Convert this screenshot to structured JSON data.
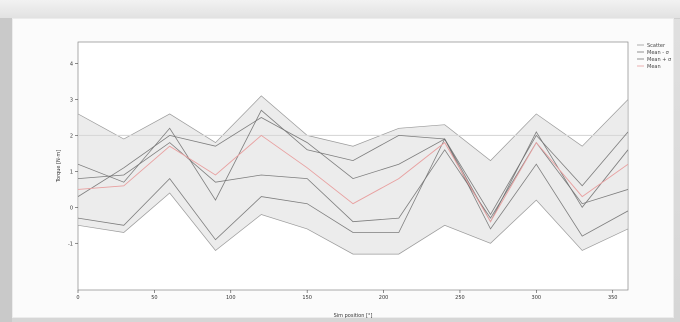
{
  "chart_data": {
    "type": "line",
    "xlabel": "Sim position [°]",
    "ylabel": "Torque [N·m]",
    "xlim": [
      0,
      360
    ],
    "ylim": [
      -2.3,
      4.6
    ],
    "x_ticks": [
      0,
      50,
      100,
      150,
      200,
      250,
      300,
      350
    ],
    "y_ticks": [
      -1,
      0,
      1,
      2,
      3,
      4
    ],
    "legend_position": "top-right outside",
    "grid": false,
    "legend": [
      "Scatter",
      "Mean - σ",
      "Mean + σ",
      "Mean"
    ],
    "colors": {
      "band": "#dcdcdc",
      "band_edge": "#9a9a9a",
      "traces": "#6a6a6a",
      "mean": "#e8a0a0",
      "reference": "#d8d8d8",
      "axis": "#444444"
    },
    "reference_line": {
      "y": 2.0
    },
    "band": {
      "x": [
        0,
        30,
        60,
        90,
        120,
        150,
        180,
        210,
        240,
        270,
        300,
        330,
        360
      ],
      "upper": [
        2.6,
        1.9,
        2.6,
        1.8,
        3.1,
        2.0,
        1.7,
        2.2,
        2.3,
        1.3,
        2.6,
        1.7,
        3.0
      ],
      "lower": [
        -0.5,
        -0.7,
        0.4,
        -1.2,
        -0.2,
        -0.6,
        -1.3,
        -1.3,
        -0.5,
        -1.0,
        0.2,
        -1.2,
        -0.6
      ]
    },
    "series": [
      {
        "values": [
          1.2,
          0.7,
          2.2,
          0.2,
          2.7,
          1.6,
          1.3,
          2.0,
          1.9,
          -0.4,
          2.1,
          0.0,
          1.6
        ]
      },
      {
        "values": [
          0.3,
          1.1,
          2.0,
          1.7,
          2.5,
          1.8,
          0.8,
          1.2,
          1.9,
          -0.2,
          2.0,
          0.6,
          2.1
        ]
      },
      {
        "values": [
          -0.3,
          -0.5,
          0.8,
          -0.9,
          0.3,
          0.1,
          -0.7,
          -0.7,
          1.9,
          -0.6,
          1.2,
          -0.8,
          -0.1
        ]
      },
      {
        "values": [
          0.8,
          0.9,
          1.8,
          0.7,
          0.9,
          0.8,
          -0.4,
          -0.3,
          1.6,
          -0.3,
          1.8,
          0.1,
          0.5
        ]
      }
    ],
    "mean": {
      "x": [
        0,
        30,
        60,
        90,
        120,
        150,
        180,
        210,
        240,
        270,
        300,
        330,
        360
      ],
      "values": [
        0.5,
        0.6,
        1.7,
        0.9,
        2.0,
        1.1,
        0.1,
        0.8,
        1.8,
        -0.4,
        1.8,
        0.3,
        1.2
      ]
    }
  }
}
